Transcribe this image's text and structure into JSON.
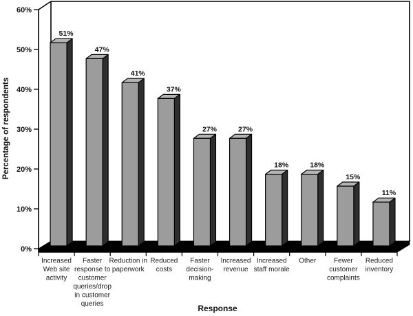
{
  "chart_data": {
    "type": "bar",
    "style": "3d-column",
    "title": "",
    "xlabel": "Response",
    "ylabel": "Percentage of respondents",
    "categories": [
      "Increased Web site activity",
      "Faster response to customer queries/drop in customer queries",
      "Reduction in paperwork",
      "Reduced costs",
      "Faster decision-making",
      "Increased revenue",
      "Increased staff morale",
      "Other",
      "Fewer customer complaints",
      "Reduced inventory"
    ],
    "category_lines": [
      [
        "Increased",
        "Web site",
        "activity"
      ],
      [
        "Faster",
        "response to",
        "customer",
        "queries/drop",
        "in customer",
        "queries"
      ],
      [
        "Reduction in",
        "paperwork"
      ],
      [
        "Reduced",
        "costs"
      ],
      [
        "Faster",
        "decision-",
        "making"
      ],
      [
        "Increased",
        "revenue"
      ],
      [
        "Increased",
        "staff morale"
      ],
      [
        "Other"
      ],
      [
        "Fewer",
        "customer",
        "complaints"
      ],
      [
        "Reduced",
        "inventory"
      ]
    ],
    "values": [
      51,
      47,
      41,
      37,
      27,
      27,
      18,
      18,
      15,
      11
    ],
    "value_labels": [
      "51%",
      "47%",
      "41%",
      "37%",
      "27%",
      "27%",
      "18%",
      "18%",
      "15%",
      "11%"
    ],
    "ytick_values": [
      0,
      10,
      20,
      30,
      40,
      50,
      60
    ],
    "ytick_labels": [
      "0%",
      "10%",
      "20%",
      "30%",
      "40%",
      "50%",
      "60%"
    ],
    "ylim": [
      0,
      60
    ],
    "grid": "off",
    "legend": "none",
    "colors": {
      "bar_front": "#9c9c9c",
      "bar_top": "#b4b4b4",
      "bar_side": "#2e2e2e",
      "floor": "#1f1f1f",
      "outline": "#000000",
      "background": "#ffffff"
    }
  }
}
